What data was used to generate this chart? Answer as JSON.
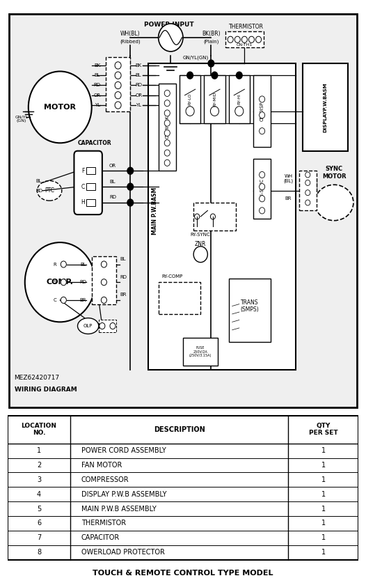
{
  "bg_color": "#efefef",
  "white": "#ffffff",
  "black": "#000000",
  "title": "TOUCH & REMOTE CONTROL TYPE MODEL",
  "diagram_title1": "MEZ62420717",
  "diagram_title2": "WIRING DIAGRAM",
  "table_headers": [
    "LOCATION\nNO.",
    "DESCRIPTION",
    "QTY\nPER SET"
  ],
  "table_rows": [
    [
      "1",
      "POWER CORD ASSEMBLY",
      "1"
    ],
    [
      "2",
      "FAN MOTOR",
      "1"
    ],
    [
      "3",
      "COMPRESSOR",
      "1"
    ],
    [
      "4",
      "DISPLAY P.W.B ASSEMBLY",
      "1"
    ],
    [
      "5",
      "MAIN P.W.B ASSEMBLY",
      "1"
    ],
    [
      "6",
      "THERMISTOR",
      "1"
    ],
    [
      "7",
      "CAPACITOR",
      "1"
    ],
    [
      "8",
      "OWERLOAD PROTECTOR",
      "1"
    ]
  ]
}
